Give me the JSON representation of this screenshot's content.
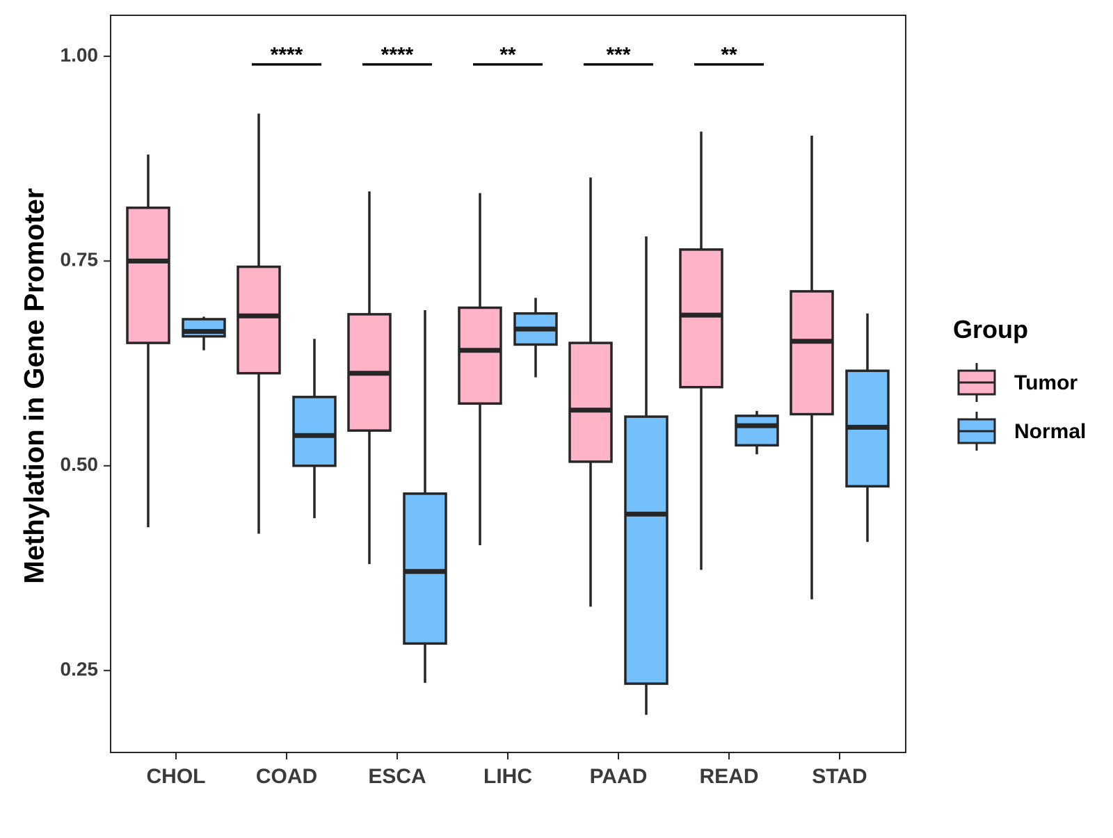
{
  "chart_data": {
    "type": "boxplot",
    "title": "",
    "xlabel": "",
    "ylabel": "Methylation in Gene Promoter",
    "ylim": [
      0.15,
      1.05
    ],
    "yticks": [
      0.25,
      0.5,
      0.75,
      1.0
    ],
    "ytick_labels": [
      "0.25",
      "0.50",
      "0.75",
      "1.00"
    ],
    "categories": [
      "CHOL",
      "COAD",
      "ESCA",
      "LIHC",
      "PAAD",
      "READ",
      "STAD"
    ],
    "legend": {
      "title": "Group",
      "position": "right",
      "entries": [
        {
          "name": "Tumor",
          "color": "#FFB3C6"
        },
        {
          "name": "Normal",
          "color": "#74C0FC"
        }
      ]
    },
    "series": [
      {
        "name": "Tumor",
        "color": "#FFB3C6",
        "boxes": [
          {
            "whisker_low": 0.425,
            "q1": 0.65,
            "median": 0.75,
            "q3": 0.815,
            "whisker_high": 0.88
          },
          {
            "whisker_low": 0.417,
            "q1": 0.613,
            "median": 0.683,
            "q3": 0.743,
            "whisker_high": 0.93
          },
          {
            "whisker_low": 0.38,
            "q1": 0.543,
            "median": 0.613,
            "q3": 0.685,
            "whisker_high": 0.835
          },
          {
            "whisker_low": 0.403,
            "q1": 0.576,
            "median": 0.641,
            "q3": 0.693,
            "whisker_high": 0.833
          },
          {
            "whisker_low": 0.328,
            "q1": 0.505,
            "median": 0.568,
            "q3": 0.65,
            "whisker_high": 0.852
          },
          {
            "whisker_low": 0.373,
            "q1": 0.596,
            "median": 0.684,
            "q3": 0.764,
            "whisker_high": 0.908
          },
          {
            "whisker_low": 0.337,
            "q1": 0.563,
            "median": 0.652,
            "q3": 0.713,
            "whisker_high": 0.903
          }
        ]
      },
      {
        "name": "Normal",
        "color": "#74C0FC",
        "boxes": [
          {
            "whisker_low": 0.641,
            "q1": 0.658,
            "median": 0.664,
            "q3": 0.679,
            "whisker_high": 0.682
          },
          {
            "whisker_low": 0.436,
            "q1": 0.5,
            "median": 0.537,
            "q3": 0.584,
            "whisker_high": 0.655
          },
          {
            "whisker_low": 0.235,
            "q1": 0.283,
            "median": 0.371,
            "q3": 0.466,
            "whisker_high": 0.69
          },
          {
            "whisker_low": 0.608,
            "q1": 0.648,
            "median": 0.667,
            "q3": 0.686,
            "whisker_high": 0.705
          },
          {
            "whisker_low": 0.196,
            "q1": 0.234,
            "median": 0.441,
            "q3": 0.56,
            "whisker_high": 0.78
          },
          {
            "whisker_low": 0.514,
            "q1": 0.525,
            "median": 0.549,
            "q3": 0.561,
            "whisker_high": 0.567
          },
          {
            "whisker_low": 0.407,
            "q1": 0.475,
            "median": 0.547,
            "q3": 0.616,
            "whisker_high": 0.686
          }
        ]
      }
    ],
    "significance": [
      {
        "category": "COAD",
        "label": "****",
        "y": 0.99
      },
      {
        "category": "ESCA",
        "label": "****",
        "y": 0.99
      },
      {
        "category": "LIHC",
        "label": "**",
        "y": 0.99
      },
      {
        "category": "PAAD",
        "label": "***",
        "y": 0.99
      },
      {
        "category": "READ",
        "label": "**",
        "y": 0.99
      }
    ]
  }
}
